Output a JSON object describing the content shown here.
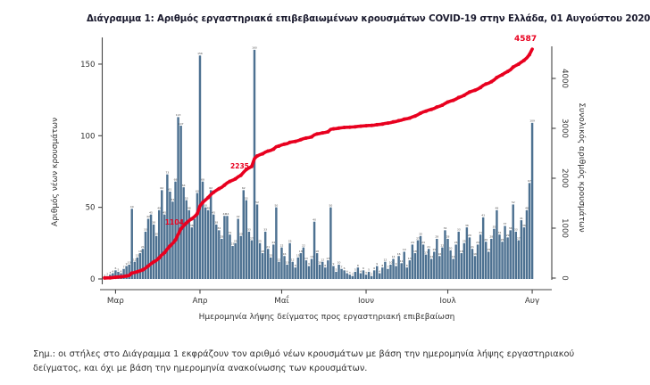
{
  "title": "Διάγραμμα 1: Αριθμός εργαστηριακά επιβεβαιωμένων κρουσμάτων COVID-19 στην Ελλάδα, 01 Αυγούστου 2020",
  "note": "Σημ.: οι στήλες στο Διάγραμμα 1 εκφράζουν τον αριθμό νέων κρουσμάτων με βάση την ημερομηνία λήψης εργαστηριακού δείγματος, και όχι με βάση την ημερομηνία ανακοίνωσης των κρουσμάτων.",
  "chart_data": {
    "type": "bar",
    "subtype": "daily bars with cumulative line overlay",
    "xlabel": "Ημερομηνία λήψης δείγματος προς εργαστηριακή επιβεβαίωση",
    "left_axis": {
      "label": "Αριθμός νέων κρουσμάτων",
      "ticks": [
        0,
        50,
        100,
        150
      ],
      "range": [
        0,
        165
      ]
    },
    "right_axis": {
      "label": "Συνολικός αριθμός κρουσμάτων",
      "ticks": [
        0,
        1000,
        2000,
        3000,
        4000
      ],
      "range": [
        0,
        4650
      ]
    },
    "months": [
      "Μαρ",
      "Απρ",
      "Μαΐ",
      "Ιουν",
      "Ιουλ",
      "Αυγ"
    ],
    "month_start_indices": [
      4,
      35,
      65,
      96,
      126,
      157
    ],
    "daily_new_cases": [
      1,
      2,
      3,
      4,
      6,
      5,
      4,
      7,
      9,
      10,
      49,
      12,
      15,
      18,
      21,
      33,
      42,
      45,
      38,
      30,
      48,
      62,
      45,
      73,
      61,
      54,
      68,
      113,
      107,
      64,
      55,
      48,
      36,
      42,
      60,
      156,
      68,
      50,
      48,
      62,
      45,
      38,
      34,
      28,
      44,
      44,
      31,
      23,
      25,
      42,
      30,
      62,
      55,
      33,
      27,
      160,
      52,
      25,
      18,
      33,
      21,
      15,
      24,
      50,
      12,
      22,
      16,
      10,
      25,
      12,
      8,
      15,
      18,
      22,
      13,
      9,
      14,
      40,
      18,
      10,
      12,
      8,
      13,
      50,
      9,
      5,
      10,
      7,
      6,
      4,
      3,
      2,
      5,
      8,
      4,
      6,
      3,
      5,
      2,
      6,
      9,
      4,
      8,
      12,
      7,
      10,
      14,
      9,
      16,
      11,
      19,
      8,
      13,
      24,
      18,
      27,
      30,
      24,
      17,
      21,
      14,
      19,
      28,
      16,
      22,
      34,
      28,
      20,
      14,
      24,
      33,
      18,
      25,
      36,
      29,
      21,
      16,
      24,
      31,
      43,
      26,
      19,
      28,
      35,
      48,
      31,
      26,
      37,
      29,
      34,
      52,
      33,
      27,
      41,
      36,
      48,
      67,
      109
    ],
    "cumulative_final_total": 4587,
    "annotations": [
      {
        "label": "1104",
        "index": 30
      },
      {
        "label": "2235",
        "index": 54
      },
      {
        "label": "4587",
        "index": 157
      }
    ],
    "colors": {
      "bar": "#4d7191",
      "line": "#e8001f",
      "bar_value_label": "#4a4a4a",
      "axis": "#444444",
      "tick_text": "#333333"
    }
  }
}
